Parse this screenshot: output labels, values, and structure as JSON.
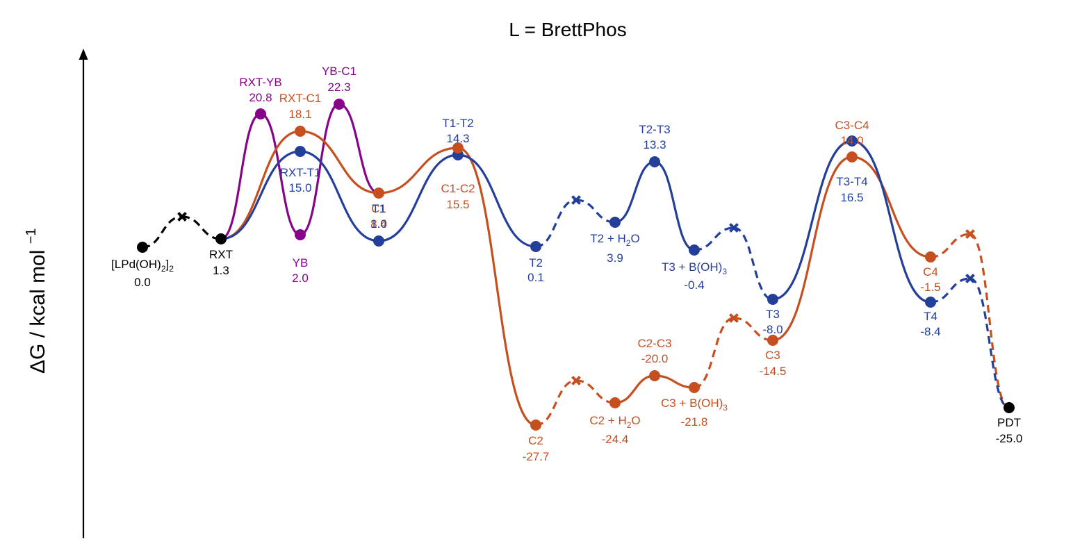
{
  "chart_data": {
    "type": "line",
    "title": "L = BrettPhos",
    "ylabel": "ΔG / kcal mol",
    "ylabel_sup": "−1",
    "colors": {
      "common": "#000000",
      "yb": "#87038a",
      "t": "#233f99",
      "c": "#c64f1f"
    },
    "points": [
      {
        "id": "start",
        "name": "[LPd(OH)2]2",
        "name_main": "[LPd(OH)",
        "name_sub": "2",
        "name_tail": "]",
        "name_sub2": "2",
        "value": "0.0",
        "color": "common",
        "marker": "dot"
      },
      {
        "id": "rxt",
        "name": "RXT",
        "value": "1.3",
        "color": "common",
        "marker": "dot"
      },
      {
        "id": "rxt_yb",
        "name": "RXT-YB",
        "value": "20.8",
        "color": "yb",
        "marker": "dot"
      },
      {
        "id": "yb",
        "name": "YB",
        "value": "2.0",
        "color": "yb",
        "marker": "dot"
      },
      {
        "id": "yb_c1",
        "name": "YB-C1",
        "value": "22.3",
        "color": "yb",
        "marker": "dot"
      },
      {
        "id": "rxt_c1",
        "name": "RXT-C1",
        "value": "18.1",
        "color": "c",
        "marker": "dot"
      },
      {
        "id": "c1",
        "name": "C1",
        "value": "8.4",
        "color": "c",
        "marker": "dot"
      },
      {
        "id": "rxt_t1",
        "name": "RXT-T1",
        "value": "15.0",
        "color": "t",
        "marker": "dot"
      },
      {
        "id": "t1",
        "name": "T1",
        "value": "1.0",
        "color": "t",
        "marker": "dot"
      },
      {
        "id": "t1_t2",
        "name": "T1-T2",
        "value": "14.3",
        "color": "t",
        "marker": "dot"
      },
      {
        "id": "c1_c2",
        "name": "C1-C2",
        "value": "15.5",
        "color": "c",
        "marker": "dot"
      },
      {
        "id": "t2",
        "name": "T2",
        "value": "0.1",
        "color": "t",
        "marker": "dot"
      },
      {
        "id": "c2",
        "name": "C2",
        "value": "-27.7",
        "color": "c",
        "marker": "dot"
      },
      {
        "id": "t2_h2o",
        "name": "T2 + H2O",
        "name_main": "T2 + H",
        "name_sub": "2",
        "name_tail": "O",
        "value": "3.9",
        "color": "t",
        "marker": "dot"
      },
      {
        "id": "c2_h2o",
        "name": "C2 + H2O",
        "name_main": "C2 + H",
        "name_sub": "2",
        "name_tail": "O",
        "value": "-24.4",
        "color": "c",
        "marker": "dot"
      },
      {
        "id": "t2_t3",
        "name": "T2-T3",
        "value": "13.3",
        "color": "t",
        "marker": "dot"
      },
      {
        "id": "c2_c3",
        "name": "C2-C3",
        "value": "-20.0",
        "color": "c",
        "marker": "dot"
      },
      {
        "id": "t3_boh",
        "name": "T3 + B(OH)3",
        "name_main": "T3 + B(OH)",
        "name_sub": "3",
        "value": "-0.4",
        "color": "t",
        "marker": "dot"
      },
      {
        "id": "c3_boh",
        "name": "C3 + B(OH)3",
        "name_main": "C3 + B(OH)",
        "name_sub": "3",
        "value": "-21.8",
        "color": "c",
        "marker": "dot"
      },
      {
        "id": "t3",
        "name": "T3",
        "value": "-8.0",
        "color": "t",
        "marker": "dot"
      },
      {
        "id": "c3",
        "name": "C3",
        "value": "-14.5",
        "color": "c",
        "marker": "dot"
      },
      {
        "id": "c3_c4",
        "name": "C3-C4",
        "value": "14.0",
        "color": "c",
        "marker": "dot"
      },
      {
        "id": "t3_t4",
        "name": "T3-T4",
        "value": "16.5",
        "color": "t",
        "marker": "dot"
      },
      {
        "id": "c4",
        "name": "C4",
        "value": "-1.5",
        "color": "c",
        "marker": "dot"
      },
      {
        "id": "t4",
        "name": "T4",
        "value": "-8.4",
        "color": "t",
        "marker": "dot"
      },
      {
        "id": "pdt",
        "name": "PDT",
        "value": "-25.0",
        "color": "common",
        "marker": "dot"
      }
    ],
    "series": [
      {
        "id": "common-start",
        "color": "common",
        "nodes": [
          "start",
          "x_common",
          "rxt"
        ]
      },
      {
        "id": "yb-path",
        "color": "yb",
        "nodes": [
          "rxt",
          "rxt_yb",
          "yb",
          "yb_c1",
          "c1"
        ]
      },
      {
        "id": "c-path",
        "color": "c",
        "nodes": [
          "rxt",
          "rxt_c1",
          "c1",
          "c1_c2",
          "c2",
          "x_c1",
          "c2_h2o",
          "c2_c3",
          "c3_boh",
          "x_c2",
          "c3",
          "c3_c4",
          "c4",
          "x_c3",
          "pdt"
        ]
      },
      {
        "id": "t-path",
        "color": "t",
        "nodes": [
          "rxt",
          "rxt_t1",
          "t1",
          "t1_t2",
          "t2",
          "x_t1",
          "t2_h2o",
          "t2_t3",
          "t3_boh",
          "x_t2",
          "t3",
          "t3_t4",
          "t4",
          "x_t3",
          "pdt"
        ]
      }
    ]
  }
}
